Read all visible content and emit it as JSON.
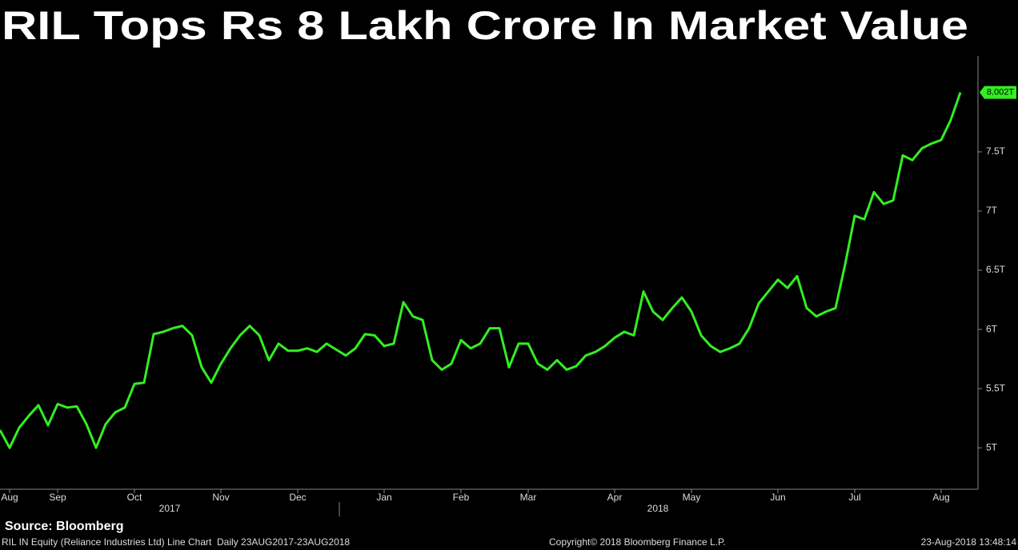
{
  "chart_data": {
    "type": "line",
    "title": "RIL Tops Rs 8 Lakh Crore In Market Value",
    "categories": [
      null,
      "Aug",
      null,
      null,
      null,
      null,
      "Sep",
      null,
      null,
      null,
      null,
      null,
      null,
      null,
      "Oct",
      null,
      null,
      null,
      null,
      null,
      null,
      null,
      null,
      "Nov",
      null,
      null,
      null,
      null,
      null,
      null,
      null,
      "Dec",
      null,
      null,
      null,
      null,
      null,
      null,
      null,
      null,
      "Jan",
      null,
      null,
      null,
      null,
      null,
      null,
      null,
      "Feb",
      null,
      null,
      null,
      null,
      null,
      null,
      "Mar",
      null,
      null,
      null,
      null,
      null,
      null,
      null,
      null,
      "Apr",
      null,
      null,
      null,
      null,
      null,
      null,
      null,
      "May",
      null,
      null,
      null,
      null,
      null,
      null,
      null,
      null,
      "Jun",
      null,
      null,
      null,
      null,
      null,
      null,
      null,
      "Jul",
      null,
      null,
      null,
      null,
      null,
      null,
      null,
      null,
      "Aug",
      null,
      null
    ],
    "year_labels": [
      "2017",
      "2018"
    ],
    "series": [
      {
        "name": "RIL IN Equity",
        "color": "#33ee22",
        "values": [
          5.15,
          5.0,
          5.17,
          5.27,
          5.36,
          5.19,
          5.37,
          5.34,
          5.35,
          5.2,
          5.0,
          5.2,
          5.3,
          5.34,
          5.54,
          5.55,
          5.96,
          5.98,
          6.01,
          6.03,
          5.95,
          5.68,
          5.55,
          5.71,
          5.84,
          5.95,
          6.03,
          5.95,
          5.74,
          5.88,
          5.82,
          5.82,
          5.84,
          5.81,
          5.88,
          5.83,
          5.78,
          5.84,
          5.96,
          5.95,
          5.86,
          5.88,
          6.23,
          6.11,
          6.08,
          5.74,
          5.66,
          5.71,
          5.91,
          5.84,
          5.88,
          6.01,
          6.01,
          5.68,
          5.88,
          5.88,
          5.71,
          5.66,
          5.74,
          5.66,
          5.69,
          5.78,
          5.81,
          5.86,
          5.93,
          5.98,
          5.95,
          6.32,
          6.15,
          6.08,
          6.18,
          6.27,
          6.15,
          5.95,
          5.86,
          5.81,
          5.84,
          5.88,
          6.01,
          6.22,
          6.32,
          6.42,
          6.35,
          6.45,
          6.18,
          6.11,
          6.15,
          6.18,
          6.55,
          6.96,
          6.93,
          7.16,
          7.06,
          7.09,
          7.47,
          7.43,
          7.53,
          7.57,
          7.6,
          7.77,
          8.002
        ],
        "value_labels": [
          null,
          null,
          null,
          null,
          null,
          null,
          null,
          null,
          null,
          null,
          null,
          null,
          null,
          null,
          null,
          null,
          null,
          null,
          null,
          null,
          null,
          null,
          null,
          null,
          null,
          null,
          null,
          null,
          null,
          null,
          null,
          null,
          null,
          null,
          null,
          null,
          null,
          null,
          null,
          null,
          null,
          null,
          null,
          null,
          null,
          null,
          null,
          null,
          null,
          null,
          null,
          null,
          null,
          null,
          null,
          null,
          null,
          null,
          null,
          null,
          null,
          null,
          null,
          null,
          null,
          null,
          null,
          null,
          null,
          null,
          null,
          null,
          null,
          null,
          null,
          null,
          null,
          null,
          null,
          null,
          null,
          null,
          null,
          null,
          null,
          null,
          null,
          null,
          null,
          null,
          null,
          null,
          null,
          null,
          null,
          null,
          null,
          null,
          null,
          null,
          "8.002T"
        ]
      }
    ],
    "ylim": [
      4.65,
      8.31
    ],
    "yticks": [
      {
        "value": 5,
        "label": "5T"
      },
      {
        "value": 5.5,
        "label": "5.5T"
      },
      {
        "value": 6,
        "label": "6T"
      },
      {
        "value": 6.5,
        "label": "6.5T"
      },
      {
        "value": 7,
        "label": "7T"
      },
      {
        "value": 7.5,
        "label": "7.5T"
      }
    ],
    "grid": false
  },
  "footer": {
    "source": "Source: Bloomberg",
    "description": "RIL IN Equity (Reliance Industries Ltd) Line Chart  Daily 23AUG2017-23AUG2018",
    "copyright": "Copyright© 2018 Bloomberg Finance L.P.",
    "timestamp": "23-Aug-2018 13:48:14"
  }
}
